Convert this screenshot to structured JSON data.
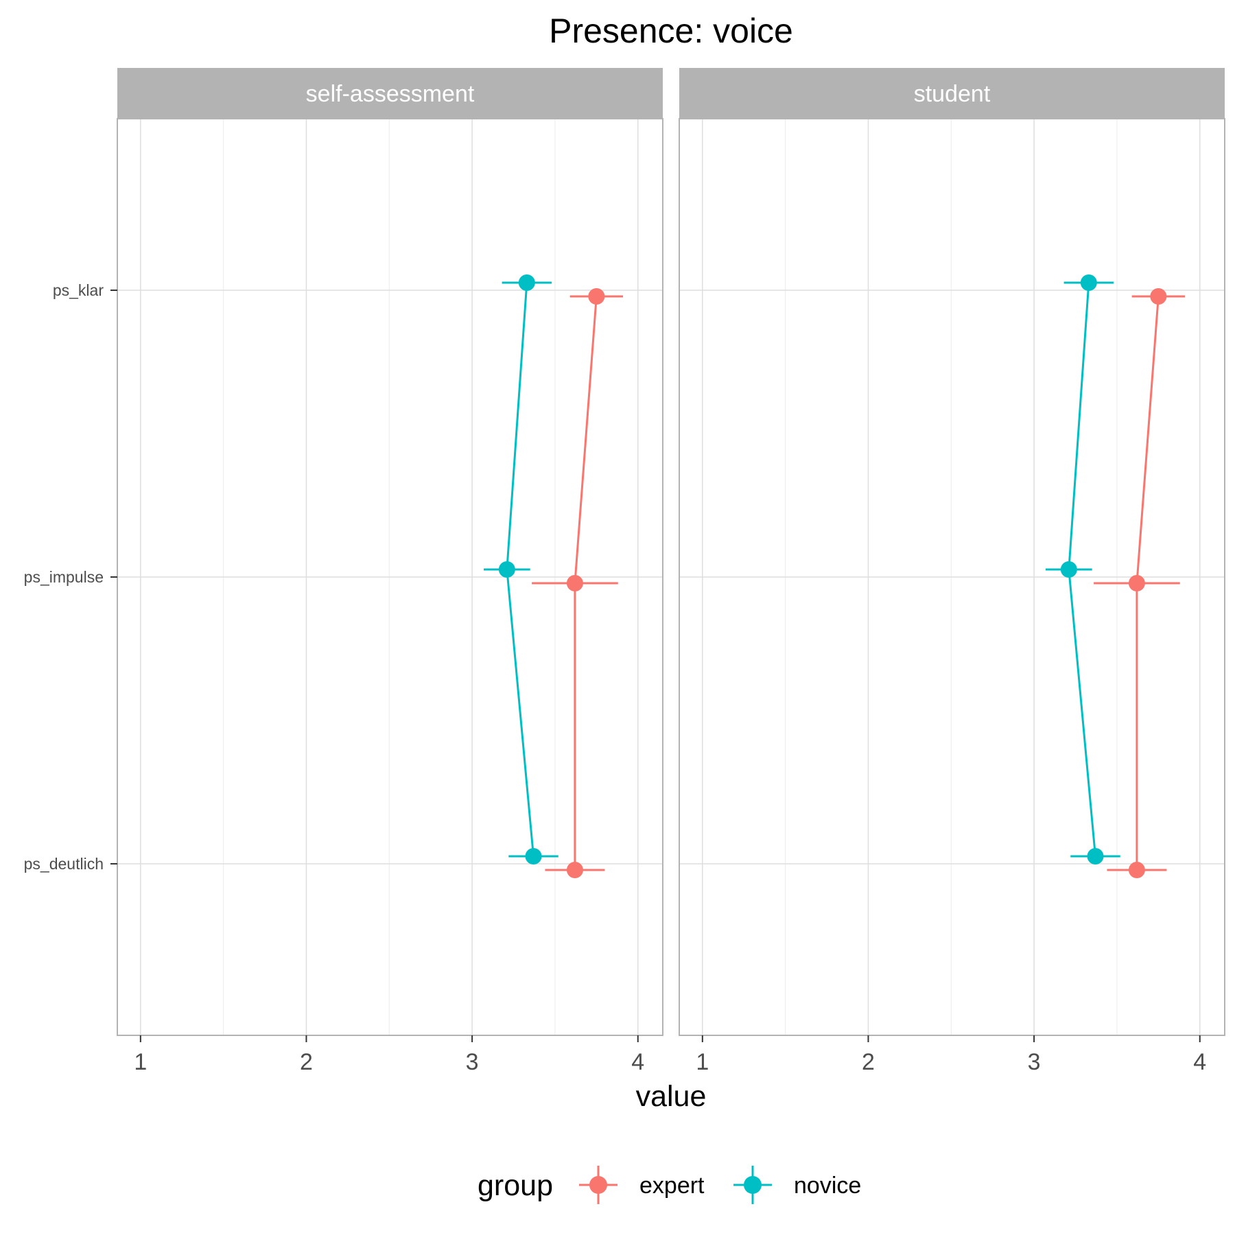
{
  "chart_data": {
    "type": "point-range",
    "title": "Presence: voice",
    "xlabel": "value",
    "ylabel": "",
    "xlim": [
      0.86,
      4.15
    ],
    "x_ticks": [
      1,
      2,
      3,
      4
    ],
    "y_categories": [
      "ps_klar",
      "ps_impulse",
      "ps_deutlich"
    ],
    "grid": true,
    "legend": {
      "title": "group",
      "position": "bottom",
      "entries": [
        {
          "name": "expert",
          "color": "#F8766D"
        },
        {
          "name": "novice",
          "color": "#00BFC4"
        }
      ]
    },
    "panels": [
      {
        "label": "self-assessment",
        "series": [
          {
            "name": "expert",
            "color": "#F8766D",
            "points": [
              {
                "category": "ps_klar",
                "value": 3.75,
                "lower": 3.59,
                "upper": 3.91
              },
              {
                "category": "ps_impulse",
                "value": 3.62,
                "lower": 3.36,
                "upper": 3.88
              },
              {
                "category": "ps_deutlich",
                "value": 3.62,
                "lower": 3.44,
                "upper": 3.8
              }
            ]
          },
          {
            "name": "novice",
            "color": "#00BFC4",
            "points": [
              {
                "category": "ps_klar",
                "value": 3.33,
                "lower": 3.18,
                "upper": 3.48
              },
              {
                "category": "ps_impulse",
                "value": 3.21,
                "lower": 3.07,
                "upper": 3.35
              },
              {
                "category": "ps_deutlich",
                "value": 3.37,
                "lower": 3.22,
                "upper": 3.52
              }
            ]
          }
        ]
      },
      {
        "label": "student",
        "series": [
          {
            "name": "expert",
            "color": "#F8766D",
            "points": [
              {
                "category": "ps_klar",
                "value": 3.75,
                "lower": 3.59,
                "upper": 3.91
              },
              {
                "category": "ps_impulse",
                "value": 3.62,
                "lower": 3.36,
                "upper": 3.88
              },
              {
                "category": "ps_deutlich",
                "value": 3.62,
                "lower": 3.44,
                "upper": 3.8
              }
            ]
          },
          {
            "name": "novice",
            "color": "#00BFC4",
            "points": [
              {
                "category": "ps_klar",
                "value": 3.33,
                "lower": 3.18,
                "upper": 3.48
              },
              {
                "category": "ps_impulse",
                "value": 3.21,
                "lower": 3.07,
                "upper": 3.35
              },
              {
                "category": "ps_deutlich",
                "value": 3.37,
                "lower": 3.22,
                "upper": 3.52
              }
            ]
          }
        ]
      }
    ]
  }
}
